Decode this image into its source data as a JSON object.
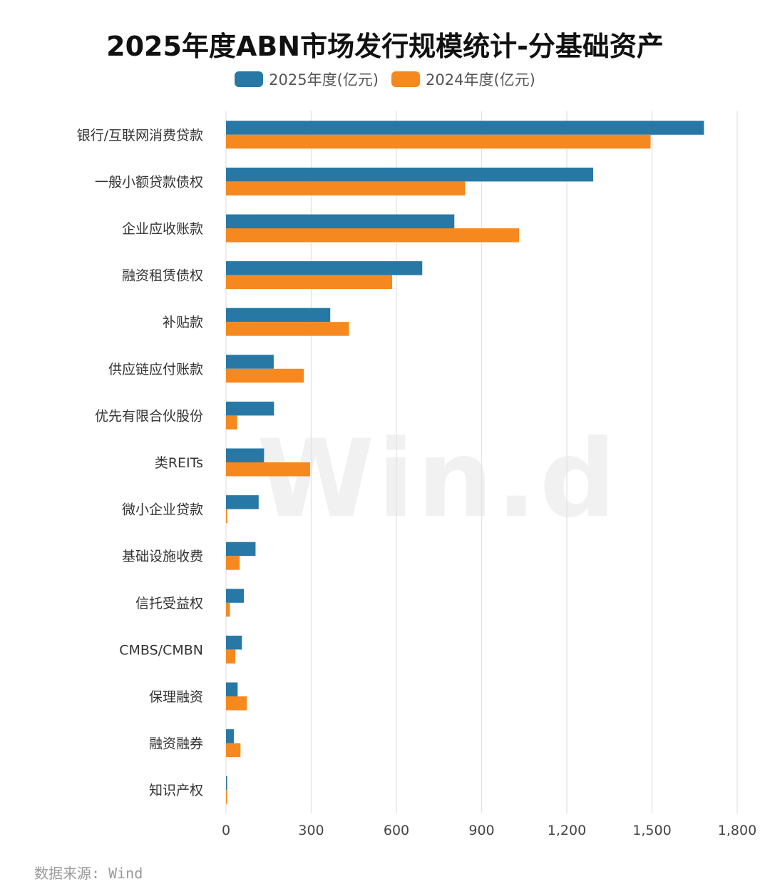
{
  "title": "2025年度ABN市场发行规模统计-分基础资产",
  "legend": [
    {
      "name": "2025年度(亿元)",
      "color": "#2878a6"
    },
    {
      "name": "2024年度(亿元)",
      "color": "#f5891f"
    }
  ],
  "watermark": "Win.d",
  "source": "数据来源: Wind",
  "chart_data": {
    "type": "bar",
    "orientation": "horizontal",
    "categories": [
      "银行/互联网消费贷款",
      "一般小额贷款债权",
      "企业应收账款",
      "融资租赁债权",
      "补贴款",
      "供应链应付账款",
      "优先有限合伙股份",
      "类REITs",
      "微小企业贷款",
      "基础设施收费",
      "信托受益权",
      "CMBS/CMBN",
      "保理融资",
      "融资融券",
      "知识产权"
    ],
    "series": [
      {
        "name": "2025年度(亿元)",
        "color": "#2878a6",
        "values": [
          1683,
          1293,
          804,
          691,
          367,
          168,
          169,
          134,
          115,
          104,
          63,
          56,
          41,
          28,
          4
        ]
      },
      {
        "name": "2024年度(亿元)",
        "color": "#f5891f",
        "values": [
          1495,
          842,
          1032,
          585,
          433,
          274,
          39,
          296,
          4,
          48,
          14,
          33,
          73,
          51,
          2
        ]
      }
    ],
    "xlim": [
      0,
      1800
    ],
    "xticks": [
      "0",
      "300",
      "600",
      "900",
      "1,200",
      "1,500",
      "1,800"
    ],
    "xtick_values": [
      0,
      300,
      600,
      900,
      1200,
      1500,
      1800
    ],
    "grid": "vertical",
    "legend_position": "top-center"
  }
}
